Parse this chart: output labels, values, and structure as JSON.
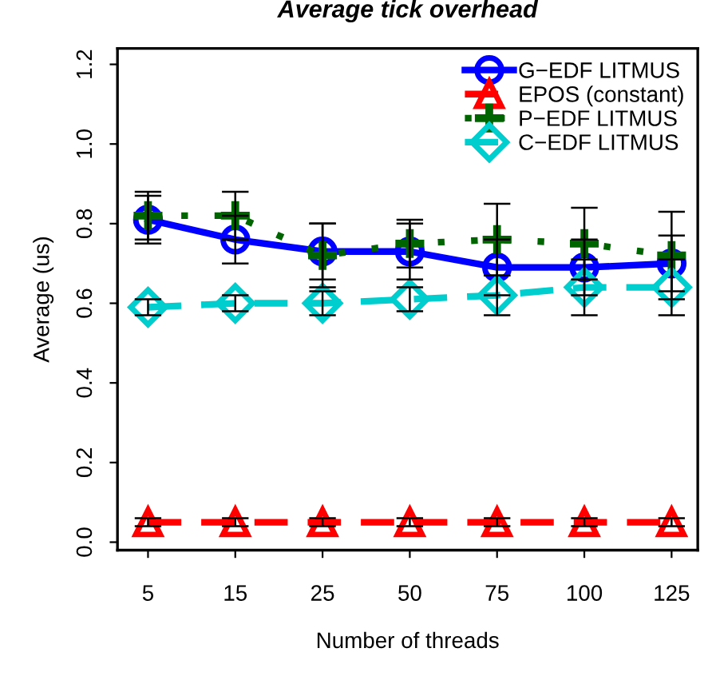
{
  "chart_data": {
    "type": "line",
    "title": "Average tick overhead",
    "xlabel": "Number of threads",
    "ylabel": "Average (us)",
    "categories": [
      "5",
      "15",
      "25",
      "50",
      "75",
      "100",
      "125"
    ],
    "ylim": [
      -0.02,
      1.24
    ],
    "yticks": [
      {
        "value": 0,
        "label": "0.0"
      },
      0.2,
      0.4,
      0.6,
      0.8,
      {
        "value": 1,
        "label": "1.0"
      },
      1.2
    ],
    "grid": false,
    "legend": "top right",
    "series": [
      {
        "name": "G−EDF LITMUS",
        "color": "#0000ff",
        "marker": "circle",
        "line_style": "solid",
        "values": [
          0.81,
          0.76,
          0.73,
          0.73,
          0.69,
          0.69,
          0.7
        ],
        "errors": [
          0.06,
          0.06,
          0.07,
          0.07,
          0.07,
          0.07,
          0.07
        ]
      },
      {
        "name": "EPOS (constant)",
        "color": "#ff0000",
        "marker": "triangle",
        "line_style": "dashed",
        "values": [
          0.05,
          0.05,
          0.05,
          0.05,
          0.05,
          0.05,
          0.05
        ],
        "errors": [
          0.01,
          0.01,
          0.01,
          0.01,
          0.01,
          0.01,
          0.01
        ]
      },
      {
        "name": "P−EDF LITMUS",
        "color": "#006400",
        "marker": "cross",
        "line_style": "dotted",
        "values": [
          0.82,
          0.82,
          0.72,
          0.75,
          0.76,
          0.75,
          0.72
        ],
        "errors": [
          0.06,
          0.06,
          0.08,
          0.06,
          0.09,
          0.09,
          0.11
        ]
      },
      {
        "name": "C−EDF LITMUS",
        "color": "#00cdcd",
        "marker": "diamond",
        "line_style": "dashed",
        "values": [
          0.59,
          0.6,
          0.6,
          0.61,
          0.62,
          0.64,
          0.64
        ],
        "errors": [
          0.02,
          0.02,
          0.03,
          0.03,
          0.05,
          0.07,
          0.07
        ]
      }
    ]
  }
}
